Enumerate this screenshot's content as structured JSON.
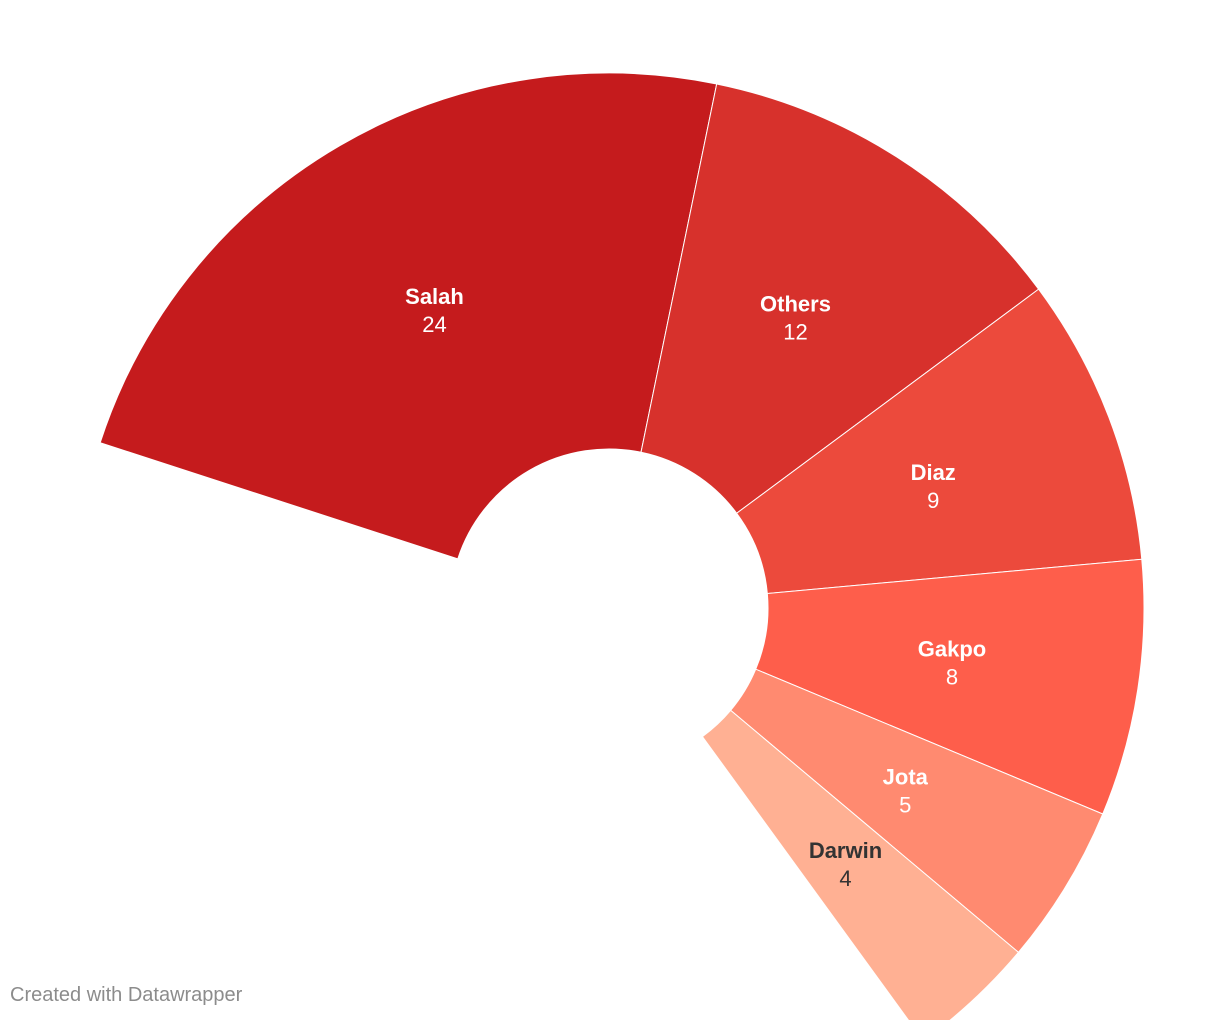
{
  "chart_data": {
    "type": "pie",
    "variant": "semi-donut",
    "categories": [
      "Salah",
      "Others",
      "Diaz",
      "Gakpo",
      "Jota",
      "Darwin"
    ],
    "values": [
      24,
      12,
      9,
      8,
      5,
      4
    ],
    "colors": [
      "#c51b1d",
      "#d7312c",
      "#ec4a3c",
      "#fe5e4b",
      "#ff8a70",
      "#ffb093"
    ],
    "label_colors": [
      "#ffffff",
      "#ffffff",
      "#ffffff",
      "#ffffff",
      "#ffffff",
      "#333333"
    ]
  },
  "footer": {
    "credit": "Created with Datawrapper"
  }
}
